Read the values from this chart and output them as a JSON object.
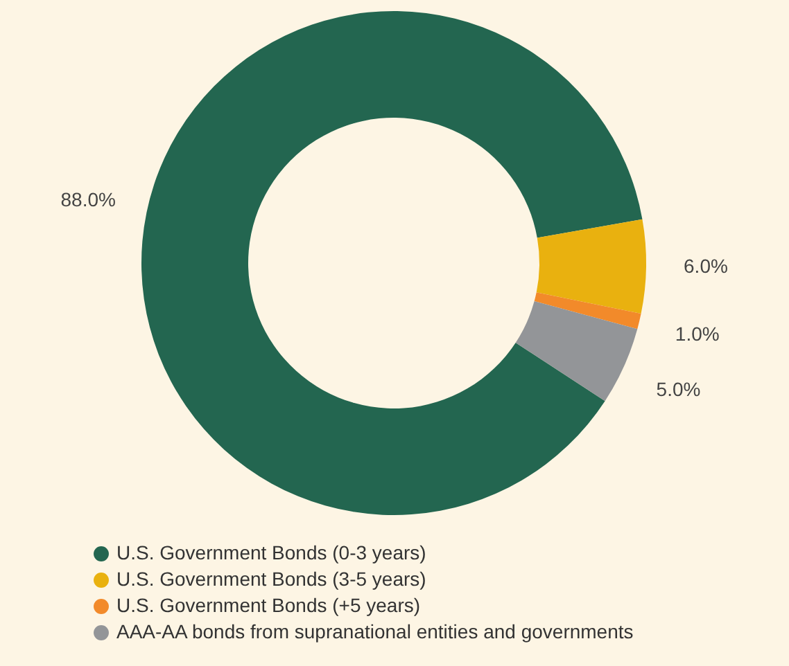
{
  "chart_data": {
    "type": "donut",
    "categories": [
      "U.S. Government Bonds (0-3 years)",
      "U.S. Government Bonds (3-5 years)",
      "U.S. Government Bonds (+5 years)",
      "AAA-AA bonds from supranational entities and governments"
    ],
    "values": [
      88,
      6,
      1,
      5
    ],
    "value_labels": [
      "88.0%",
      "6.0%",
      "1.0%",
      "5.0%"
    ],
    "colors": [
      "#236650",
      "#e9b10f",
      "#f28a2a",
      "#939598"
    ],
    "legend": "bottom"
  }
}
